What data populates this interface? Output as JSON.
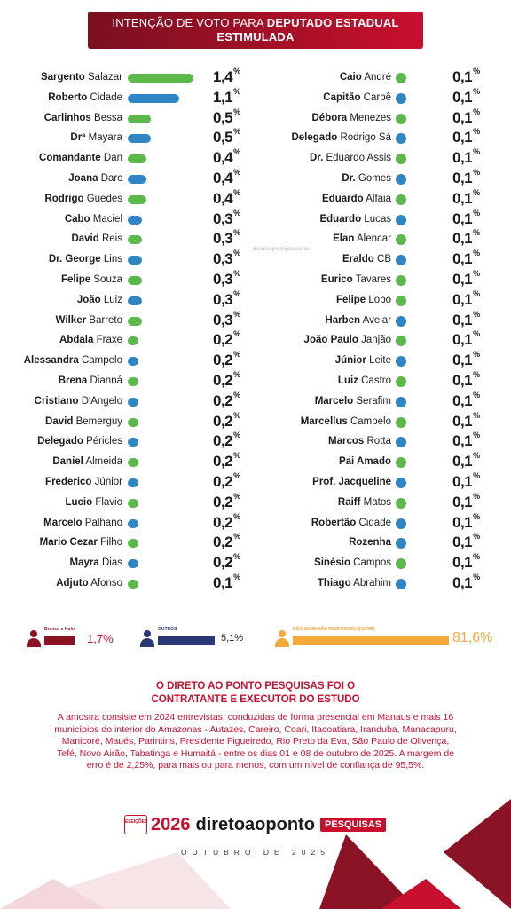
{
  "header": {
    "line1_prefix": "INTENÇÃO DE VOTO PARA ",
    "line1_bold": "DEPUTADO ESTADUAL",
    "line2": "ESTIMULADA"
  },
  "watermark": "diretoaopontopesquisas",
  "colors": {
    "green": "#5cb84a",
    "blue": "#2f86c2",
    "red": "#c8102e",
    "darkred": "#8a1325",
    "navy": "#2b3875",
    "orange": "#f4a93a"
  },
  "left": [
    {
      "first": "Sargento",
      "last": "Salazar",
      "pct": "1,4",
      "value": 1.4,
      "color": "green"
    },
    {
      "first": "Roberto",
      "last": "Cidade",
      "pct": "1,1",
      "value": 1.1,
      "color": "blue"
    },
    {
      "first": "Carlinhos",
      "last": "Bessa",
      "pct": "0,5",
      "value": 0.5,
      "color": "green"
    },
    {
      "first": "Drª",
      "last": "Mayara",
      "pct": "0,5",
      "value": 0.5,
      "color": "blue"
    },
    {
      "first": "Comandante",
      "last": "Dan",
      "pct": "0,4",
      "value": 0.4,
      "color": "green"
    },
    {
      "first": "Joana",
      "last": "Darc",
      "pct": "0,4",
      "value": 0.4,
      "color": "blue"
    },
    {
      "first": "Rodrigo",
      "last": "Guedes",
      "pct": "0,4",
      "value": 0.4,
      "color": "green"
    },
    {
      "first": "Cabo",
      "last": "Maciel",
      "pct": "0,3",
      "value": 0.3,
      "color": "blue"
    },
    {
      "first": "David",
      "last": "Reis",
      "pct": "0,3",
      "value": 0.3,
      "color": "green"
    },
    {
      "first": "Dr. George",
      "last": "Lins",
      "pct": "0,3",
      "value": 0.3,
      "color": "blue"
    },
    {
      "first": "Felipe",
      "last": "Souza",
      "pct": "0,3",
      "value": 0.3,
      "color": "green"
    },
    {
      "first": "João",
      "last": "Luiz",
      "pct": "0,3",
      "value": 0.3,
      "color": "blue"
    },
    {
      "first": "Wilker",
      "last": "Barreto",
      "pct": "0,3",
      "value": 0.3,
      "color": "green"
    },
    {
      "first": "Abdala",
      "last": "Fraxe",
      "pct": "0,2",
      "value": 0.2,
      "color": "green"
    },
    {
      "first": "Alessandra",
      "last": "Campelo",
      "pct": "0,2",
      "value": 0.2,
      "color": "blue"
    },
    {
      "first": "Brena",
      "last": "Dianná",
      "pct": "0,2",
      "value": 0.2,
      "color": "green"
    },
    {
      "first": "Cristiano",
      "last": "D'Angelo",
      "pct": "0,2",
      "value": 0.2,
      "color": "blue"
    },
    {
      "first": "David",
      "last": "Bemerguy",
      "pct": "0,2",
      "value": 0.2,
      "color": "green"
    },
    {
      "first": "Delegado",
      "last": "Péricles",
      "pct": "0,2",
      "value": 0.2,
      "color": "blue"
    },
    {
      "first": "Daniel",
      "last": "Almeida",
      "pct": "0,2",
      "value": 0.2,
      "color": "green"
    },
    {
      "first": "Frederico",
      "last": "Júnior",
      "pct": "0,2",
      "value": 0.2,
      "color": "blue"
    },
    {
      "first": "Lucio",
      "last": "Flavio",
      "pct": "0,2",
      "value": 0.2,
      "color": "green"
    },
    {
      "first": "Marcelo",
      "last": "Palhano",
      "pct": "0,2",
      "value": 0.2,
      "color": "blue"
    },
    {
      "first": "Mario Cezar",
      "last": "Filho",
      "pct": "0,2",
      "value": 0.2,
      "color": "green"
    },
    {
      "first": "Mayra",
      "last": "Dias",
      "pct": "0,2",
      "value": 0.2,
      "color": "blue"
    },
    {
      "first": "Adjuto",
      "last": "Afonso",
      "pct": "0,1",
      "value": 0.1,
      "color": "green"
    }
  ],
  "right": [
    {
      "first": "Caio",
      "last": "André",
      "pct": "0,1",
      "color": "green"
    },
    {
      "first": "Capitão",
      "last": "Carpê",
      "pct": "0,1",
      "color": "blue"
    },
    {
      "first": "Débora",
      "last": "Menezes",
      "pct": "0,1",
      "color": "green"
    },
    {
      "first": "Delegado",
      "last": "Rodrigo Sá",
      "pct": "0,1",
      "color": "blue"
    },
    {
      "first": "Dr.",
      "last": "Eduardo Assis",
      "pct": "0,1",
      "color": "green"
    },
    {
      "first": "Dr.",
      "last": "Gomes",
      "pct": "0,1",
      "color": "blue"
    },
    {
      "first": "Eduardo",
      "last": "Alfaia",
      "pct": "0,1",
      "color": "green"
    },
    {
      "first": "Eduardo",
      "last": "Lucas",
      "pct": "0,1",
      "color": "blue"
    },
    {
      "first": "Elan",
      "last": "Alencar",
      "pct": "0,1",
      "color": "green"
    },
    {
      "first": "Eraldo",
      "last": "CB",
      "pct": "0,1",
      "color": "blue"
    },
    {
      "first": "Eurico",
      "last": "Tavares",
      "pct": "0,1",
      "color": "green"
    },
    {
      "first": "Felipe",
      "last": "Lobo",
      "pct": "0,1",
      "color": "green"
    },
    {
      "first": "Harben",
      "last": "Avelar",
      "pct": "0,1",
      "color": "blue"
    },
    {
      "first": "João Paulo",
      "last": "Janjão",
      "pct": "0,1",
      "color": "green"
    },
    {
      "first": "Júnior",
      "last": "Leite",
      "pct": "0,1",
      "color": "blue"
    },
    {
      "first": "Luiz",
      "last": "Castro",
      "pct": "0,1",
      "color": "green"
    },
    {
      "first": "Marcelo",
      "last": "Serafim",
      "pct": "0,1",
      "color": "blue"
    },
    {
      "first": "Marcellus",
      "last": "Campelo",
      "pct": "0,1",
      "color": "green"
    },
    {
      "first": "Marcos",
      "last": "Rotta",
      "pct": "0,1",
      "color": "blue"
    },
    {
      "first": "Pai Amado",
      "last": "",
      "pct": "0,1",
      "color": "green"
    },
    {
      "first": "Prof. Jacqueline",
      "last": "",
      "pct": "0,1",
      "color": "blue"
    },
    {
      "first": "Raiff",
      "last": "Matos",
      "pct": "0,1",
      "color": "green"
    },
    {
      "first": "Robertão",
      "last": "Cidade",
      "pct": "0,1",
      "color": "blue"
    },
    {
      "first": "Rozenha",
      "last": "",
      "pct": "0,1",
      "color": "blue"
    },
    {
      "first": "Sinésio",
      "last": "Campos",
      "pct": "0,1",
      "color": "green"
    },
    {
      "first": "Thiago",
      "last": "Abrahim",
      "pct": "0,1",
      "color": "blue"
    }
  ],
  "pct_symbol": "%",
  "summary": {
    "branco": {
      "label": "Branco e Nulo",
      "pct": "1,7%",
      "value": 1.7
    },
    "outros": {
      "label": "OUTROS",
      "pct": "5,1%",
      "value": 5.1
    },
    "nao_sabe": {
      "label": "NÃO SABE/NÃO RESPONDEU (NS/NR)",
      "pct": "81,6%",
      "value": 81.6
    }
  },
  "footer": {
    "title_line1": "O DIRETO AO PONTO PESQUISAS FOI O",
    "title_line2": "CONTRATANTE E EXECUTOR DO ESTUDO",
    "text": "A amostra consiste em 2024 entrevistas, conduzidas de forma presencial em Manaus e mais 16 municípios do interior do Amazonas - Autazes, Careiro, Coari, Itacoatiara, Iranduba, Manacapuru, Manicoré, Maués, Parintins, Presidente Figueiredo, Rio Preto da Eva, São Paulo de Olivença, Tefé, Novo Airão, Tabatinga e Humaitá - entre os dias 01 e 08 de outubro de 2025. A margem de erro é de 2,25%, para mais ou para menos, com um nível de confiança de 95,5%.",
    "logo_elec": "ELEIÇÕES",
    "logo_year": "2026",
    "logo_brand": "diretoaoponto",
    "logo_pesq": "PESQUISAS",
    "date": "OUTUBRO DE 2025"
  }
}
